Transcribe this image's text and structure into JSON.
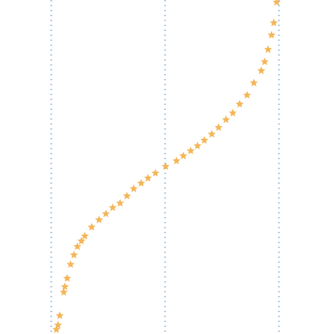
{
  "chart_data": {
    "type": "scatter",
    "marker": "star",
    "color": "#f2a93b",
    "grid": true,
    "x": [
      -1.91,
      -1.88,
      -1.85,
      -1.78,
      -1.76,
      -1.72,
      -1.66,
      -1.6,
      -1.54,
      -1.47,
      -1.41,
      -1.29,
      -1.16,
      -1.04,
      -0.92,
      -0.79,
      -0.67,
      -0.55,
      -0.42,
      -0.3,
      -0.17,
      0.01,
      0.2,
      0.32,
      0.45,
      0.57,
      0.69,
      0.82,
      0.94,
      1.07,
      1.19,
      1.31,
      1.44,
      1.56,
      1.69,
      1.75,
      1.81,
      1.87,
      1.91,
      1.96
    ],
    "y": [
      -2.92,
      -2.84,
      -2.67,
      -2.25,
      -2.15,
      -2.0,
      -1.75,
      -1.58,
      -1.43,
      -1.33,
      -1.24,
      -1.08,
      -0.95,
      -0.84,
      -0.73,
      -0.65,
      -0.52,
      -0.39,
      -0.29,
      -0.2,
      -0.11,
      0.01,
      0.11,
      0.2,
      0.29,
      0.38,
      0.48,
      0.59,
      0.71,
      0.85,
      0.97,
      1.13,
      1.29,
      1.51,
      1.73,
      1.89,
      2.11,
      2.37,
      2.59,
      2.96
    ],
    "xlim": [
      -2.9,
      2.95
    ],
    "ylim": [
      -3,
      3
    ],
    "xticks": [
      -2,
      0,
      2
    ]
  }
}
